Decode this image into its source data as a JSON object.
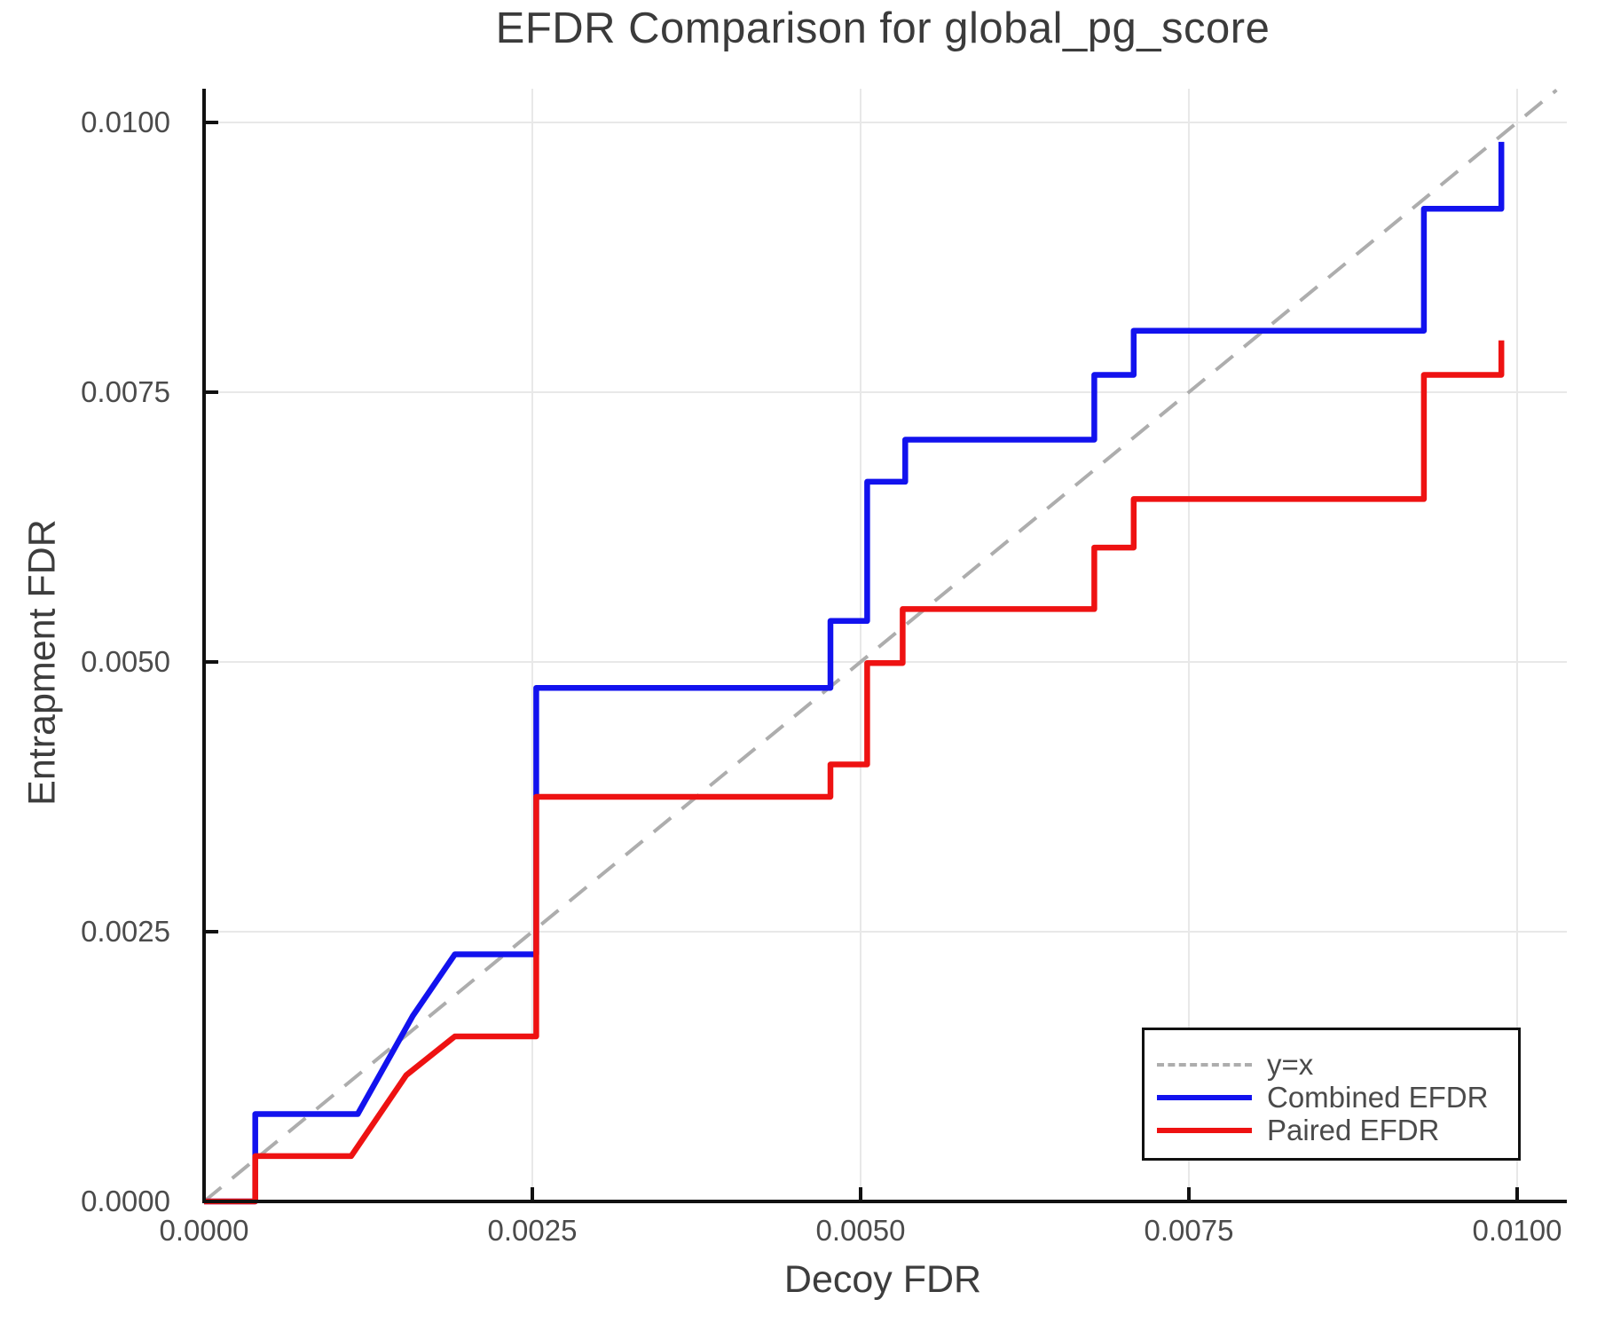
{
  "chart_data": {
    "type": "line",
    "title": "EFDR Comparison for global_pg_score",
    "xlabel": "Decoy FDR",
    "ylabel": "Entrapment FDR",
    "xlim": [
      0.0,
      0.0104
    ],
    "ylim": [
      0.0,
      0.0103
    ],
    "grid": true,
    "legend_position": "lower-right",
    "x_ticks": [
      0.0,
      0.0025,
      0.005,
      0.0075,
      0.01
    ],
    "y_ticks": [
      0.0,
      0.0025,
      0.005,
      0.0075,
      0.01
    ],
    "x_tick_labels": [
      "0.0000",
      "0.0025",
      "0.0050",
      "0.0075",
      "0.0100"
    ],
    "y_tick_labels": [
      "0.0000",
      "0.0025",
      "0.0050",
      "0.0075",
      "0.0100"
    ],
    "colors": {
      "grid": "#e8e8e8",
      "axis": "#111111",
      "diagonal": "#adadad",
      "combined": "#1212ee",
      "paired": "#ee1212"
    },
    "series": [
      {
        "name": "y=x",
        "style": "dashed",
        "color": "#adadad",
        "width": 4,
        "points": [
          [
            0.0,
            0.0
          ],
          [
            0.0103,
            0.0103
          ]
        ]
      },
      {
        "name": "Combined EFDR",
        "style": "solid",
        "color": "#1212ee",
        "width": 6.5,
        "points": [
          [
            0.0,
            0.0
          ],
          [
            0.00039,
            0.0
          ],
          [
            0.00039,
            0.00081
          ],
          [
            0.00117,
            0.00081
          ],
          [
            0.00159,
            0.00172
          ],
          [
            0.00191,
            0.00229
          ],
          [
            0.00253,
            0.00229
          ],
          [
            0.00253,
            0.00476
          ],
          [
            0.00477,
            0.00476
          ],
          [
            0.00477,
            0.00538
          ],
          [
            0.00505,
            0.00538
          ],
          [
            0.00505,
            0.00667
          ],
          [
            0.00534,
            0.00667
          ],
          [
            0.00534,
            0.00706
          ],
          [
            0.00678,
            0.00706
          ],
          [
            0.00678,
            0.00766
          ],
          [
            0.00708,
            0.00766
          ],
          [
            0.00708,
            0.00807
          ],
          [
            0.00929,
            0.00807
          ],
          [
            0.00929,
            0.0092
          ],
          [
            0.00988,
            0.0092
          ],
          [
            0.00988,
            0.00982
          ]
        ]
      },
      {
        "name": "Paired EFDR",
        "style": "solid",
        "color": "#ee1212",
        "width": 6.5,
        "points": [
          [
            0.0,
            0.0
          ],
          [
            0.00039,
            0.0
          ],
          [
            0.00039,
            0.00042
          ],
          [
            0.00112,
            0.00042
          ],
          [
            0.00154,
            0.00117
          ],
          [
            0.00191,
            0.00153
          ],
          [
            0.00253,
            0.00153
          ],
          [
            0.00253,
            0.00375
          ],
          [
            0.00477,
            0.00375
          ],
          [
            0.00477,
            0.00405
          ],
          [
            0.00505,
            0.00405
          ],
          [
            0.00505,
            0.00499
          ],
          [
            0.00532,
            0.00499
          ],
          [
            0.00532,
            0.00549
          ],
          [
            0.00678,
            0.00549
          ],
          [
            0.00678,
            0.00606
          ],
          [
            0.00708,
            0.00606
          ],
          [
            0.00708,
            0.00651
          ],
          [
            0.00929,
            0.00651
          ],
          [
            0.00929,
            0.00766
          ],
          [
            0.00988,
            0.00766
          ],
          [
            0.00988,
            0.00798
          ]
        ]
      }
    ]
  },
  "legend": {
    "items": [
      {
        "label": "y=x"
      },
      {
        "label": "Combined EFDR"
      },
      {
        "label": "Paired EFDR"
      }
    ]
  }
}
